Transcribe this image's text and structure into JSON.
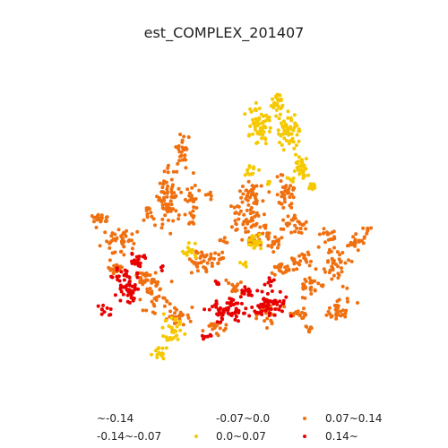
{
  "title": "est_COMPLEX_201407",
  "legend": [
    {
      "label": "~-0.14",
      "color": "#ffffff"
    },
    {
      "label": "-0.07~0.0",
      "color": "#ffffff"
    },
    {
      "label": "0.07~0.14",
      "color": "#f07010"
    },
    {
      "label": "-0.14~-0.07",
      "color": "#ffffff"
    },
    {
      "label": "0.0~0.07",
      "color": "#f5c800"
    },
    {
      "label": "0.14~",
      "color": "#e80000"
    }
  ],
  "colors": {
    "class_0.0~0.07": "#f5c800",
    "class_0.07~0.14": "#f07010",
    "class_0.14~": "#e80000"
  }
}
